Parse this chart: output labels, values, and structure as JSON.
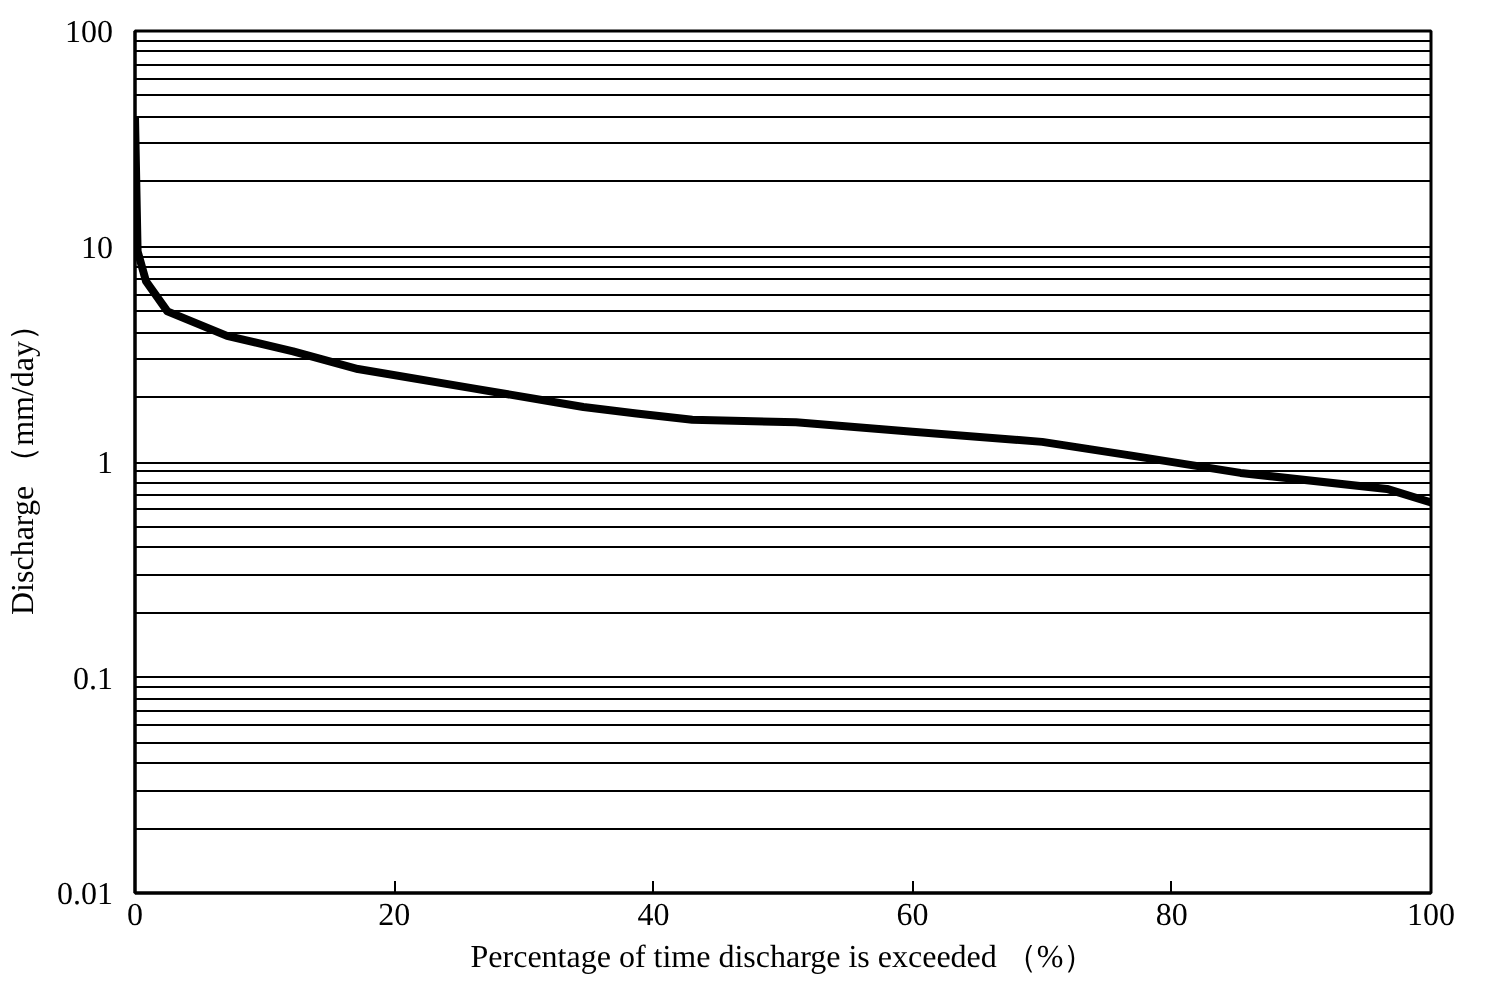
{
  "chart_data": {
    "type": "line",
    "xlabel": "Percentage of time discharge is exceeded （%）",
    "ylabel": "Discharge （mm/day）",
    "x": [
      0,
      0.2,
      0.85,
      2.5,
      7.1,
      12.2,
      17.2,
      26.2,
      34.6,
      38.7,
      43,
      51,
      60,
      70,
      76.9,
      85.3,
      96.6,
      100
    ],
    "series": [
      {
        "color": "#000000",
        "values": [
          40,
          9.5,
          6.9,
          5.0,
          3.85,
          3.26,
          2.7,
          2.19,
          1.8,
          1.68,
          1.57,
          1.53,
          1.38,
          1.24,
          1.07,
          0.89,
          0.75,
          0.65
        ]
      }
    ],
    "log": "y",
    "xlim": [
      0,
      100
    ],
    "ylim": [
      0.01,
      100
    ],
    "xticks": [
      0,
      20,
      40,
      60,
      80,
      100
    ],
    "yticks": [
      0.01,
      0.1,
      1,
      10,
      100
    ],
    "grid": "y",
    "marker": "none",
    "line_style": "solid"
  }
}
